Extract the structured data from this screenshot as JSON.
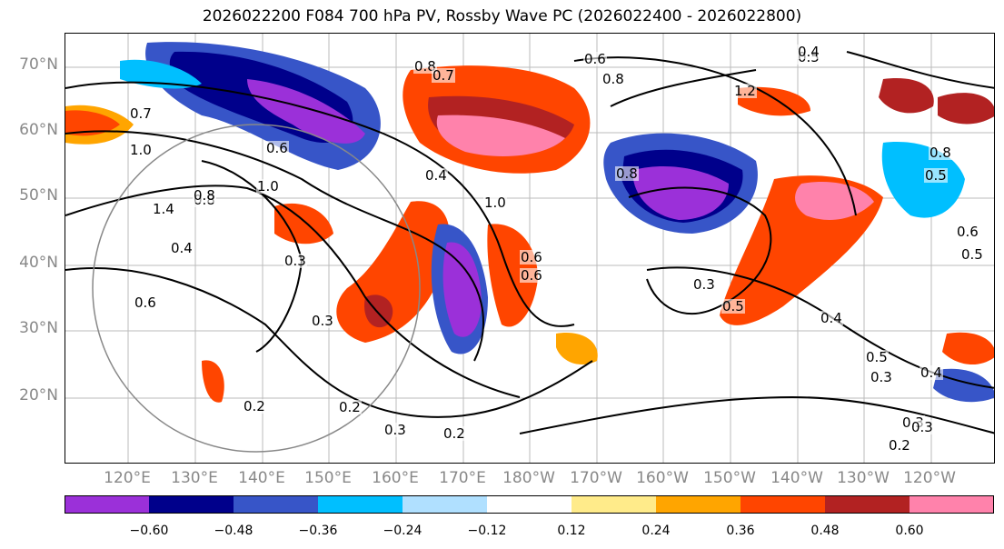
{
  "title": "2026022200 F084 700 hPa PV, Rossby Wave PC (2026022400 - 2026022800)",
  "axes": {
    "lat_labels": [
      "70°N",
      "60°N",
      "50°N",
      "40°N",
      "30°N",
      "20°N"
    ],
    "lon_labels": [
      "120°E",
      "130°E",
      "140°E",
      "150°E",
      "160°E",
      "170°E",
      "180°W",
      "170°W",
      "160°W",
      "150°W",
      "140°W",
      "130°W",
      "120°W"
    ]
  },
  "contour_labels": [
    "0.8",
    "0.7",
    "0.6",
    "0.5",
    "0.4",
    "1.0",
    "1.4",
    "1.0",
    "0.8",
    "0.6",
    "0.4",
    "0.3",
    "0.2",
    "0.3",
    "0.2",
    "0.4",
    "0.3",
    "0.5",
    "0.6",
    "0.8",
    "1.0",
    "0.4",
    "0.5",
    "0.3",
    "0.4",
    "0.3",
    "0.2",
    "0.3",
    "1.2",
    "0.8",
    "0.5",
    "0.6",
    "0.7",
    "0.8",
    "0.6",
    "0.3",
    "0.2",
    "0.8",
    "0.5",
    "0.6"
  ],
  "colorbar": {
    "colors": [
      "#9b30d9",
      "#00008b",
      "#3755c8",
      "#00bfff",
      "#b0e0ff",
      "#ffffff",
      "#ffeb8a",
      "#ffa500",
      "#ff4500",
      "#b22222",
      "#ff82ab"
    ],
    "ticks": [
      "−0.60",
      "−0.48",
      "−0.36",
      "−0.24",
      "−0.12",
      "0.12",
      "0.24",
      "0.36",
      "0.48",
      "0.60"
    ]
  }
}
